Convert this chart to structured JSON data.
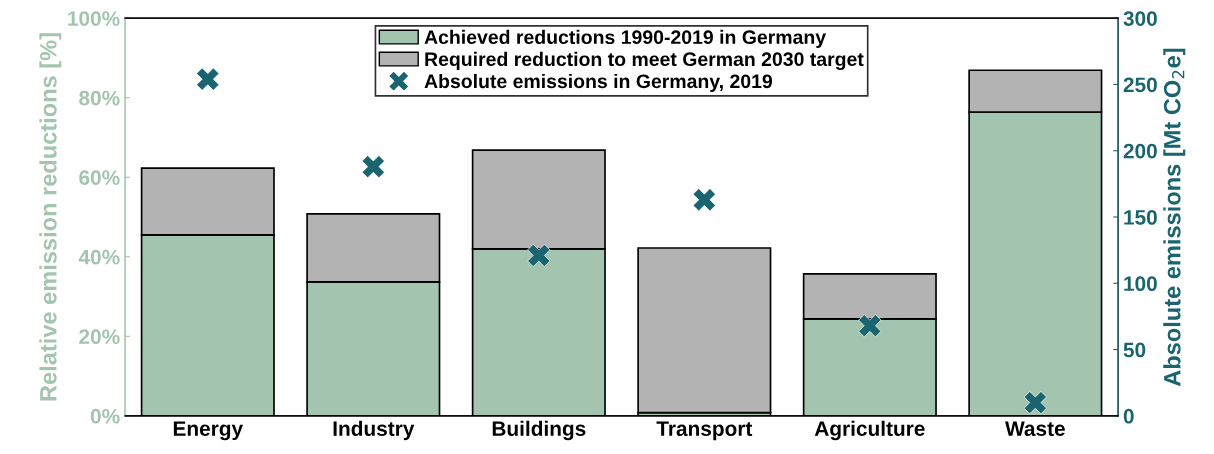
{
  "chart_data": {
    "type": "bar",
    "stacked": true,
    "categories": [
      "Energy",
      "Industry",
      "Buildings",
      "Transport",
      "Agriculture",
      "Waste"
    ],
    "ylabel": "Relative emission reductions [%]",
    "y2label": "Absolute emissions [Mt CO$_{2}$e]",
    "ylim": [
      0,
      100
    ],
    "yticks": [
      {
        "value": 0,
        "label": "0%"
      },
      {
        "value": 20,
        "label": "20%"
      },
      {
        "value": 40,
        "label": "40%"
      },
      {
        "value": 60,
        "label": "60%"
      },
      {
        "value": 80,
        "label": "80%"
      },
      {
        "value": 100,
        "label": "100%"
      }
    ],
    "y2lim": [
      0,
      300
    ],
    "y2ticks": [
      0,
      50,
      100,
      150,
      200,
      250,
      300
    ],
    "legend": "top",
    "grid": false,
    "marker": "cross",
    "series": [
      {
        "name": "Achieved reductions 1990-2019 in Germany",
        "color": "#a3c4ae",
        "values": [
          45.5,
          33.7,
          42.0,
          0.8,
          24.4,
          76.4
        ]
      },
      {
        "name": "Required reduction to meet German 2030 target",
        "color": "#b3b3b3",
        "values": [
          16.8,
          17.1,
          24.8,
          41.4,
          11.3,
          10.5
        ]
      },
      {
        "name": "Absolute emissions in Germany, 2019",
        "color": "#1a6470",
        "type": "scatter",
        "axis": "y2",
        "values": [
          254,
          188,
          121,
          163,
          68,
          10
        ]
      }
    ]
  }
}
